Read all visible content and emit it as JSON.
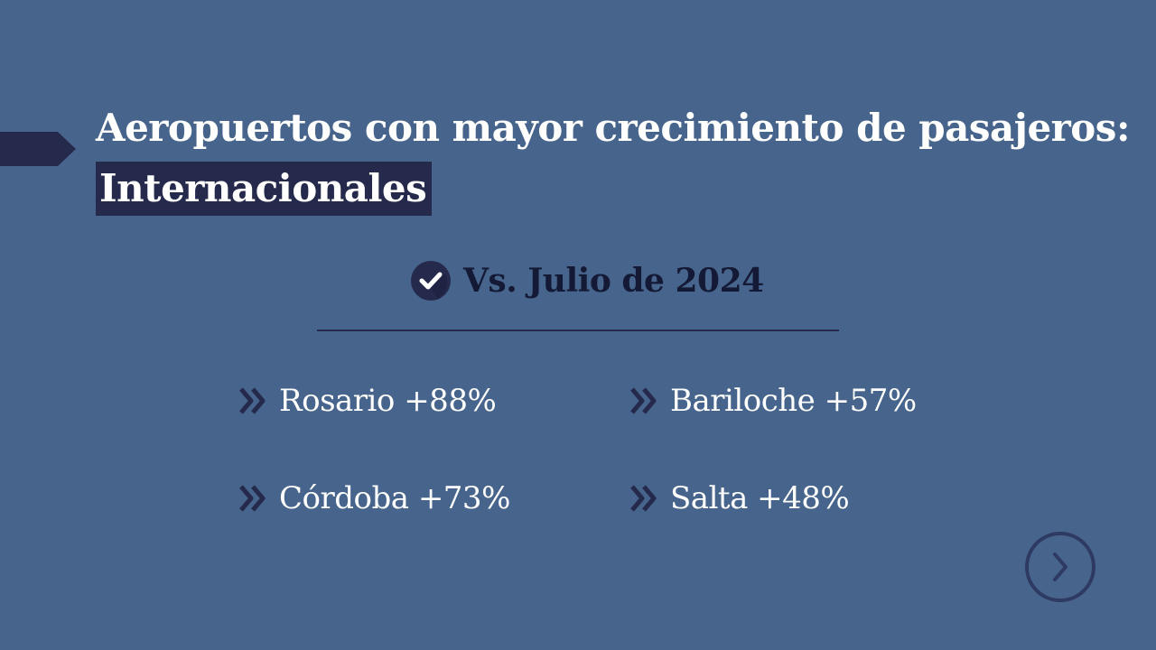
{
  "title": {
    "line1": "Aeropuertos con mayor crecimiento de pasajeros:",
    "highlight": "Internacionales"
  },
  "subtitle": {
    "icon": "check-circle-icon",
    "text": "Vs. Julio de 2024"
  },
  "items": [
    {
      "icon": "double-chevron-right-icon",
      "label": "Rosario +88%"
    },
    {
      "icon": "double-chevron-right-icon",
      "label": "Bariloche +57%"
    },
    {
      "icon": "double-chevron-right-icon",
      "label": "Córdoba +73%"
    },
    {
      "icon": "double-chevron-right-icon",
      "label": "Salta +48%"
    }
  ],
  "navigation": {
    "next_icon": "chevron-right-circle-icon"
  },
  "colors": {
    "background": "#47658c",
    "accent_dark": "#252a4d",
    "text_light": "#ffffff",
    "text_dark": "#141a35",
    "next_button": "#2f3a63"
  }
}
